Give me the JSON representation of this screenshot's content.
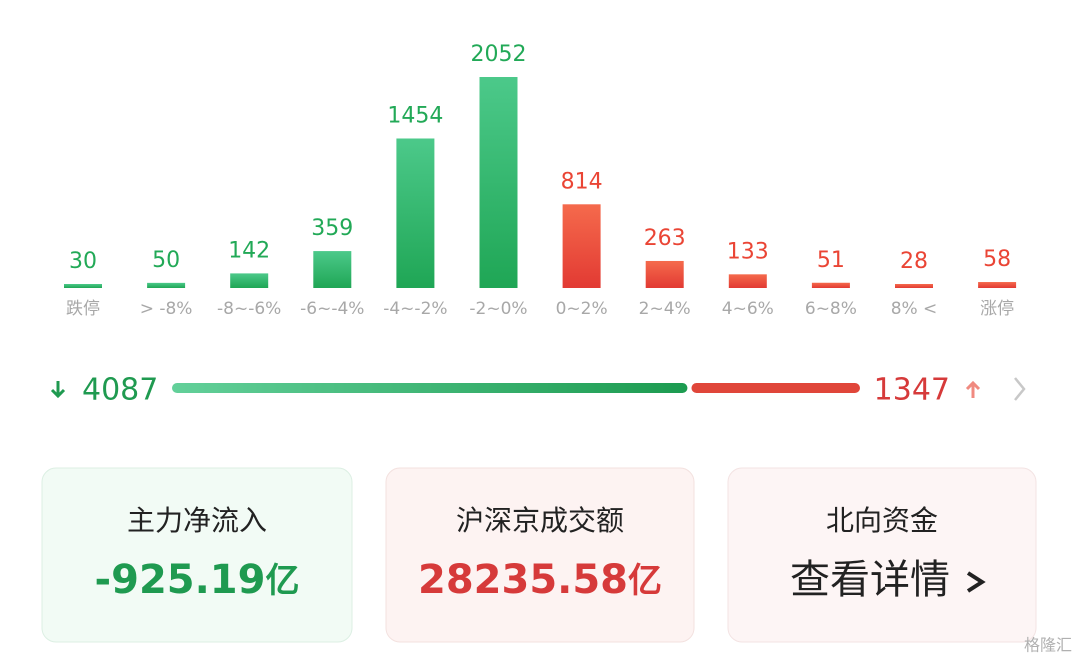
{
  "chart_data": {
    "type": "bar",
    "categories": [
      "跌停",
      "> -8%",
      "-8~-6%",
      "-6~-4%",
      "-4~-2%",
      "-2~0%",
      "0~2%",
      "2~4%",
      "4~6%",
      "6~8%",
      "8% <",
      "涨停"
    ],
    "values": [
      30,
      50,
      142,
      359,
      1454,
      2052,
      814,
      263,
      133,
      51,
      28,
      58
    ],
    "colors": [
      "#22a957",
      "#22a957",
      "#22a957",
      "#22a957",
      "#22a957",
      "#22a957",
      "#ea4535",
      "#ea4535",
      "#ea4535",
      "#ea4535",
      "#ea4535",
      "#ea4535"
    ]
  },
  "breadth": {
    "down": 4087,
    "up": 1347,
    "down_color": "#1f9a50",
    "up_color": "#e0463a"
  },
  "cards": [
    {
      "title": "主力净流入",
      "value": "-925.19",
      "unit": "亿"
    },
    {
      "title": "沪深京成交额",
      "value": "28235.58",
      "unit": "亿"
    },
    {
      "title": "北向资金",
      "link": "查看详情"
    }
  ],
  "watermark": "格隆汇"
}
